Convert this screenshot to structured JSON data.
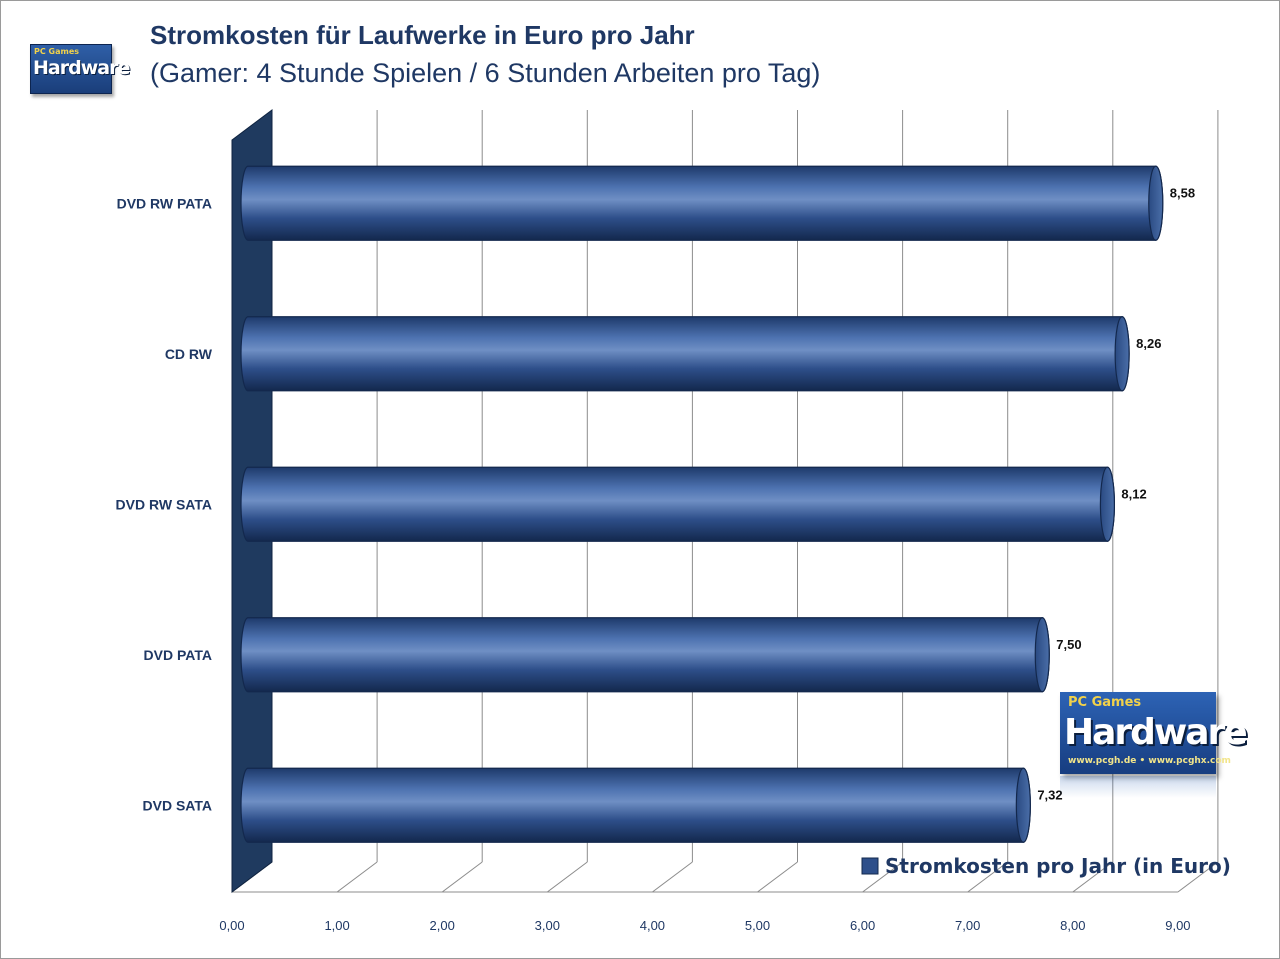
{
  "title": "Stromkosten für Laufwerke in Euro pro Jahr",
  "subtitle": "(Gamer: 4 Stunde Spielen / 6 Stunden Arbeiten pro Tag)",
  "logo": {
    "small_word": "Hardware",
    "small_tag": "PC Games",
    "big_tag": "PC Games",
    "big_word": "Hardware",
    "big_url": "www.pcgh.de • www.pcghx.com"
  },
  "colors": {
    "bar": "#2e4f8a",
    "bar_highlight": "#6f8fc4",
    "bar_dark": "#13284d",
    "wall": "#1f3a5f",
    "grid": "#8c8c8c",
    "label": "#1f3864"
  },
  "chart_data": {
    "type": "bar",
    "orientation": "horizontal",
    "title": "Stromkosten für Laufwerke in Euro pro Jahr",
    "subtitle": "(Gamer: 4 Stunde Spielen / 6 Stunden Arbeiten pro Tag)",
    "categories": [
      "DVD RW PATA",
      "CD RW",
      "DVD RW SATA",
      "DVD PATA",
      "DVD SATA"
    ],
    "series": [
      {
        "name": "Stromkosten pro Jahr (in Euro)",
        "values": [
          8.58,
          8.26,
          8.12,
          7.5,
          7.32
        ],
        "value_labels": [
          "8,58",
          "8,26",
          "8,12",
          "7,50",
          "7,32"
        ]
      }
    ],
    "xlim": [
      0,
      9
    ],
    "xticks": [
      "0,00",
      "1,00",
      "2,00",
      "3,00",
      "4,00",
      "5,00",
      "6,00",
      "7,00",
      "8,00",
      "9,00"
    ],
    "grid": true,
    "legend": "bottom-right"
  }
}
